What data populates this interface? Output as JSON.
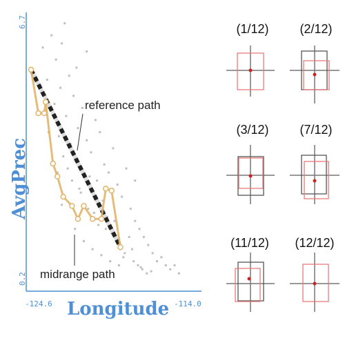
{
  "chart_data": [
    {
      "type": "scatter",
      "xlabel": "Longitude",
      "ylabel": "AvgPrec",
      "xlim": [
        -124.6,
        -114.0
      ],
      "ylim": [
        0.2,
        6.7
      ],
      "x_ticks": [
        "-124.6",
        "-114.0"
      ],
      "y_ticks": [
        "0.2",
        "6.7"
      ],
      "annotations": [
        "reference path",
        "midrange path"
      ],
      "colors": {
        "axis": "#4f8fd6",
        "points": "#aaaaaa",
        "midrange_path": "#e2b46a",
        "reference_path_dark": "#222222",
        "reference_path_light": "#dddddd"
      },
      "reference_path": {
        "x": [
          -124.6,
          -118.5
        ],
        "y": [
          5.35,
          0.95
        ]
      },
      "midrange_path": {
        "x": [
          -124.6,
          -124.1,
          -123.7,
          -123.6,
          -123.1,
          -122.8,
          -122.4,
          -121.8,
          -121.4,
          -121.0,
          -120.4,
          -119.8,
          -119.5,
          -119.1,
          -118.5
        ],
        "y": [
          5.35,
          4.27,
          4.27,
          4.55,
          3.02,
          2.7,
          2.2,
          1.97,
          1.65,
          1.97,
          1.65,
          1.65,
          2.4,
          2.35,
          0.95
        ]
      },
      "scatter_points": {
        "x": [
          -123.2,
          -122.9,
          -122.6,
          -122.3,
          -122.0,
          -121.7,
          -121.4,
          -121.1,
          -120.8,
          -120.5,
          -120.2,
          -119.9,
          -119.6,
          -119.3,
          -119.0,
          -118.7,
          -118.4,
          -118.1,
          -117.8,
          -117.5,
          -117.2,
          -116.9,
          -116.6,
          -116.3,
          -116.0,
          -115.7,
          -115.4,
          -115.1,
          -114.8,
          -114.5,
          -123.8,
          -123.5,
          -123.0,
          -122.7,
          -122.4,
          -122.1,
          -121.8,
          -121.5,
          -121.2,
          -120.9,
          -120.6,
          -120.3,
          -120.0,
          -119.7,
          -119.4,
          -119.1,
          -118.8,
          -118.5,
          -118.2,
          -117.9,
          -117.6,
          -117.3,
          -117.0,
          -116.7,
          -116.4,
          -122.2,
          -121.9,
          -121.3,
          -120.7,
          -120.1,
          -119.5,
          -118.9,
          -118.3,
          -117.7,
          -117.1,
          -123.9,
          -123.4,
          -122.8,
          -122.5,
          -121.6,
          -121.0,
          -120.4,
          -119.8,
          -119.2,
          -118.6,
          -121.5,
          -120.8,
          -122.5,
          -117.5
        ],
        "y": [
          6.2,
          5.6,
          4.9,
          6.5,
          5.2,
          4.7,
          3.9,
          4.4,
          3.6,
          3.3,
          4.1,
          3.8,
          3.0,
          2.8,
          3.4,
          2.5,
          2.2,
          2.9,
          1.9,
          1.6,
          1.4,
          1.2,
          1.0,
          0.8,
          0.6,
          0.7,
          0.5,
          0.4,
          0.5,
          0.3,
          5.9,
          5.1,
          4.5,
          3.7,
          3.2,
          2.9,
          2.6,
          3.1,
          2.3,
          2.0,
          2.7,
          1.8,
          1.5,
          2.1,
          1.7,
          1.3,
          1.1,
          0.9,
          0.8,
          1.2,
          0.6,
          0.5,
          0.4,
          0.3,
          0.35,
          4.2,
          3.5,
          2.4,
          1.9,
          2.6,
          1.4,
          1.6,
          0.7,
          0.9,
          0.45,
          4.8,
          3.8,
          2.8,
          2.0,
          1.4,
          1.1,
          0.9,
          0.75,
          0.6,
          0.5,
          5.4,
          5.8,
          6.0,
          2.6
        ]
      }
    },
    {
      "type": "small-multiples",
      "panels": [
        {
          "label": "(1/12)"
        },
        {
          "label": "(2/12)"
        },
        {
          "label": "(3/12)"
        },
        {
          "label": "(7/12)"
        },
        {
          "label": "(11/12)"
        },
        {
          "label": "(12/12)"
        }
      ],
      "colors": {
        "crosshair": "#777777",
        "red_box": "#e77a7a",
        "dark_box": "#555555",
        "dot": "#cc2222"
      }
    }
  ]
}
